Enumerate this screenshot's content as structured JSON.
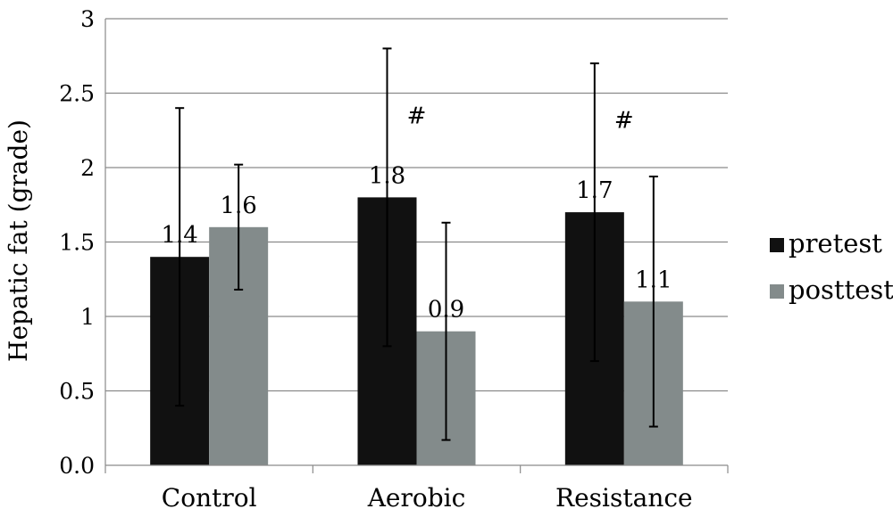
{
  "chart_data": {
    "type": "bar",
    "categories": [
      "Control",
      "Aerobic",
      "Resistance"
    ],
    "series": [
      {
        "name": "pretest",
        "color": "#111111",
        "values": [
          1.4,
          1.8,
          1.7
        ],
        "error_low": [
          0.4,
          0.8,
          0.7
        ],
        "error_high": [
          2.4,
          2.8,
          2.7
        ],
        "labels": [
          "1.4",
          "1.8",
          "1.7"
        ]
      },
      {
        "name": "posttest",
        "color": "#838b8b",
        "values": [
          1.6,
          0.9,
          1.1
        ],
        "error_low": [
          1.18,
          0.17,
          0.26
        ],
        "error_high": [
          2.02,
          1.63,
          1.94
        ],
        "labels": [
          "1.6",
          "0.9",
          "1.1"
        ]
      }
    ],
    "ylabel": "Hepatic fat (grade)",
    "ylim": [
      0,
      3
    ],
    "yticks": [
      0,
      0.5,
      1,
      1.5,
      2,
      2.5,
      3
    ],
    "ytick_labels": [
      "0.0",
      "0.5",
      "1",
      "1.5",
      "2",
      "2.5",
      "3"
    ],
    "grid": true,
    "legend_position": "right",
    "annotations": [
      {
        "category": "Aerobic",
        "text": "#",
        "y": 2.35
      },
      {
        "category": "Resistance",
        "text": "#",
        "y": 2.32
      }
    ]
  }
}
